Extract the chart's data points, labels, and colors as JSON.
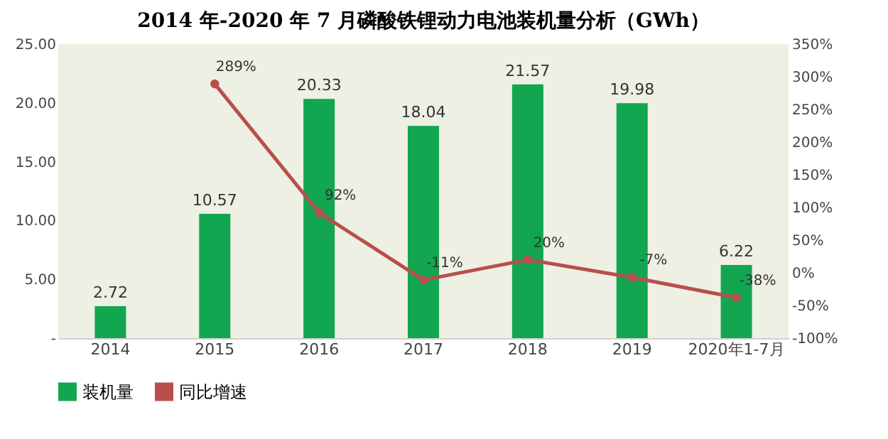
{
  "chart_data": {
    "type": "bar",
    "title": "2014 年-2020 年 7 月磷酸铁锂动力电池装机量分析（GWh）",
    "categories": [
      "2014",
      "2015",
      "2016",
      "2017",
      "2018",
      "2019",
      "2020年1-7月"
    ],
    "series": [
      {
        "name": "装机量",
        "color": "#12a650",
        "values": [
          2.72,
          10.57,
          20.33,
          18.04,
          21.57,
          19.98,
          6.22
        ],
        "value_labels": [
          "2.72",
          "10.57",
          "20.33",
          "18.04",
          "21.57",
          "19.98",
          "6.22"
        ]
      },
      {
        "name": "同比增速",
        "type": "line",
        "axis": "y2",
        "color": "#b94f4c",
        "values": [
          null,
          289,
          92,
          -11,
          20,
          -7,
          -38
        ],
        "value_labels": [
          null,
          "289%",
          "92%",
          "-11%",
          "20%",
          "-7%",
          "-38%"
        ]
      }
    ],
    "ylim": [
      0,
      25
    ],
    "yticks": [
      {
        "value": 0,
        "label": "-"
      },
      {
        "value": 5,
        "label": "5.00"
      },
      {
        "value": 10,
        "label": "10.00"
      },
      {
        "value": 15,
        "label": "15.00"
      },
      {
        "value": 20,
        "label": "20.00"
      },
      {
        "value": 25,
        "label": "25.00"
      }
    ],
    "y2lim": [
      -100,
      350
    ],
    "y2ticks": [
      {
        "value": -100,
        "label": "-100%"
      },
      {
        "value": -50,
        "label": "-50%"
      },
      {
        "value": 0,
        "label": "0%"
      },
      {
        "value": 50,
        "label": "50%"
      },
      {
        "value": 100,
        "label": "100%"
      },
      {
        "value": 150,
        "label": "150%"
      },
      {
        "value": 200,
        "label": "200%"
      },
      {
        "value": 250,
        "label": "250%"
      },
      {
        "value": 300,
        "label": "300%"
      },
      {
        "value": 350,
        "label": "350%"
      }
    ],
    "legend": "bottom",
    "marker": "circle",
    "line_style": "solid"
  }
}
